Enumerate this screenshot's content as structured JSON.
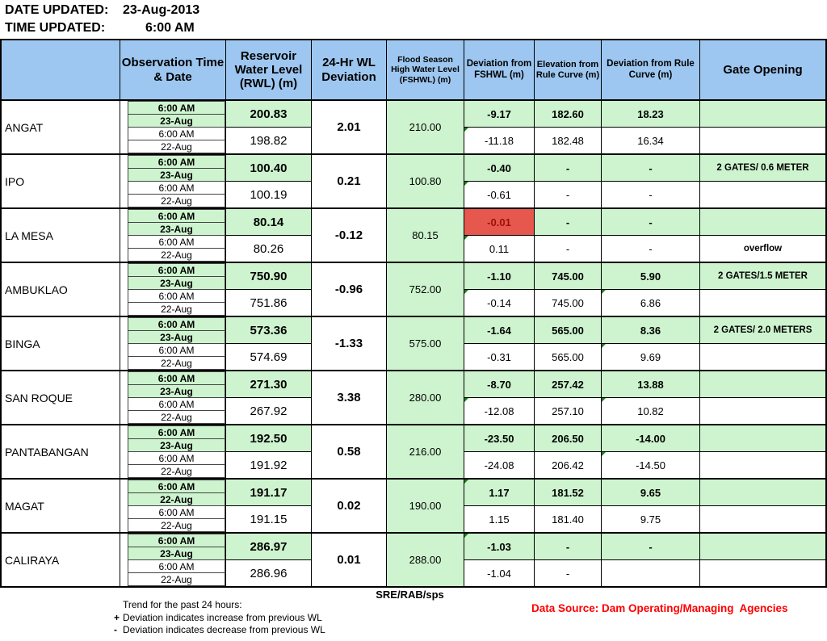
{
  "page": {
    "date_label": "DATE UPDATED:",
    "date_value": "23-Aug-2013",
    "time_label": "TIME UPDATED:",
    "time_value": "6:00 AM"
  },
  "table": {
    "headers": {
      "dam": "",
      "obs": "Observation Time & Date",
      "rwl": "Reservoir Water Level (RWL) (m)",
      "dev24": "24-Hr WL Deviation",
      "fshwl": "Flood Season High Water Level (FSHWL) (m)",
      "dev_fshwl": "Deviation from FSHWL (m)",
      "elev_rule": "Elevation from Rule Curve (m)",
      "dev_rule": "Deviation from Rule Curve (m)",
      "gate": "Gate Opening"
    },
    "rows": [
      {
        "dam": "ANGAT",
        "o1t": "6:00 AM",
        "o1d": "23-Aug",
        "o2t": "6:00 AM",
        "o2d": "22-Aug",
        "rwl1": "200.83",
        "rwl2": "198.82",
        "dev24": "2.01",
        "fshwl": "210.00",
        "df1": "-9.17",
        "df2": "-11.18",
        "er1": "182.60",
        "er2": "182.48",
        "dr1": "18.23",
        "dr2": "16.34",
        "gate1": "",
        "gate2": "",
        "alert_df1": false,
        "markers": [
          "df2"
        ]
      },
      {
        "dam": "IPO",
        "o1t": "6:00 AM",
        "o1d": "23-Aug",
        "o2t": "6:00 AM",
        "o2d": "22-Aug",
        "rwl1": "100.40",
        "rwl2": "100.19",
        "dev24": "0.21",
        "fshwl": "100.80",
        "df1": "-0.40",
        "df2": "-0.61",
        "er1": "-",
        "er2": "-",
        "dr1": "-",
        "dr2": "-",
        "gate1": "2 GATES/ 0.6 METER",
        "gate2": "",
        "alert_df1": false,
        "markers": [
          "df2"
        ]
      },
      {
        "dam": "LA MESA",
        "o1t": "6:00 AM",
        "o1d": "23-Aug",
        "o2t": "6:00 AM",
        "o2d": "22-Aug",
        "rwl1": "80.14",
        "rwl2": "80.26",
        "dev24": "-0.12",
        "fshwl": "80.15",
        "df1": "-0.01",
        "df2": "0.11",
        "er1": "-",
        "er2": "-",
        "dr1": "-",
        "dr2": "-",
        "gate1": "",
        "gate2": "overflow",
        "alert_df1": true,
        "markers": [
          "df2"
        ]
      },
      {
        "dam": "AMBUKLAO",
        "o1t": "6:00 AM",
        "o1d": "23-Aug",
        "o2t": "6:00 AM",
        "o2d": "22-Aug",
        "rwl1": "750.90",
        "rwl2": "751.86",
        "dev24": "-0.96",
        "fshwl": "752.00",
        "df1": "-1.10",
        "df2": "-0.14",
        "er1": "745.00",
        "er2": "745.00",
        "dr1": "5.90",
        "dr2": "6.86",
        "gate1": "2 GATES/1.5 METER",
        "gate2": "",
        "alert_df1": false,
        "markers": [
          "df2",
          "dr2"
        ]
      },
      {
        "dam": "BINGA",
        "o1t": "6:00 AM",
        "o1d": "23-Aug",
        "o2t": "6:00 AM",
        "o2d": "22-Aug",
        "rwl1": "573.36",
        "rwl2": "574.69",
        "dev24": "-1.33",
        "fshwl": "575.00",
        "df1": "-1.64",
        "df2": "-0.31",
        "er1": "565.00",
        "er2": "565.00",
        "dr1": "8.36",
        "dr2": "9.69",
        "gate1": "2 GATES/ 2.0 METERS",
        "gate2": "",
        "alert_df1": false,
        "markers": [
          "dr2"
        ]
      },
      {
        "dam": "SAN ROQUE",
        "o1t": "6:00 AM",
        "o1d": "23-Aug",
        "o2t": "6:00 AM",
        "o2d": "22-Aug",
        "rwl1": "271.30",
        "rwl2": "267.92",
        "dev24": "3.38",
        "fshwl": "280.00",
        "df1": "-8.70",
        "df2": "-12.08",
        "er1": "257.42",
        "er2": "257.10",
        "dr1": "13.88",
        "dr2": "10.82",
        "gate1": "",
        "gate2": "",
        "alert_df1": false,
        "markers": [
          "df2",
          "dr2"
        ]
      },
      {
        "dam": "PANTABANGAN",
        "o1t": "6:00 AM",
        "o1d": "23-Aug",
        "o2t": "6:00 AM",
        "o2d": "22-Aug",
        "rwl1": "192.50",
        "rwl2": "191.92",
        "dev24": "0.58",
        "fshwl": "216.00",
        "df1": "-23.50",
        "df2": "-24.08",
        "er1": "206.50",
        "er2": "206.42",
        "dr1": "-14.00",
        "dr2": "-14.50",
        "gate1": "",
        "gate2": "",
        "alert_df1": false,
        "markers": [
          "dr2"
        ]
      },
      {
        "dam": "MAGAT",
        "o1t": "6:00 AM",
        "o1d": "22-Aug",
        "o2t": "6:00 AM",
        "o2d": "22-Aug",
        "rwl1": "191.17",
        "rwl2": "191.15",
        "dev24": "0.02",
        "fshwl": "190.00",
        "df1": "1.17",
        "df2": "1.15",
        "er1": "181.52",
        "er2": "181.40",
        "dr1": "9.65",
        "dr2": "9.75",
        "gate1": "",
        "gate2": "",
        "alert_df1": false,
        "markers": [
          "df1"
        ]
      },
      {
        "dam": "CALIRAYA",
        "o1t": "6:00 AM",
        "o1d": "23-Aug",
        "o2t": "6:00 AM",
        "o2d": "22-Aug",
        "rwl1": "286.97",
        "rwl2": "286.96",
        "dev24": "0.01",
        "fshwl": "288.00",
        "df1": "-1.03",
        "df2": "-1.04",
        "er1": "-",
        "er2": "-",
        "dr1": "-",
        "dr2": "",
        "gate1": "",
        "gate2": "",
        "alert_df1": false,
        "markers": [
          "df1"
        ]
      }
    ]
  },
  "footer": {
    "sre": "SRE/RAB/sps",
    "trend_title": "Trend for the past 24 hours:",
    "plus_glyph": "+",
    "trend_plus": "Deviation indicates increase from previous WL",
    "minus_glyph": "-",
    "trend_minus": "Deviation indicates decrease from previous WL",
    "data_source": "Data Source: Dam Operating/Managing  Agencies"
  },
  "colors": {
    "header_blue": "#9DC7F0",
    "row_green": "#CDF4CE",
    "alert_red_bg": "#E6574D",
    "alert_red_text": "#9C1006",
    "source_red": "#FF0000"
  }
}
